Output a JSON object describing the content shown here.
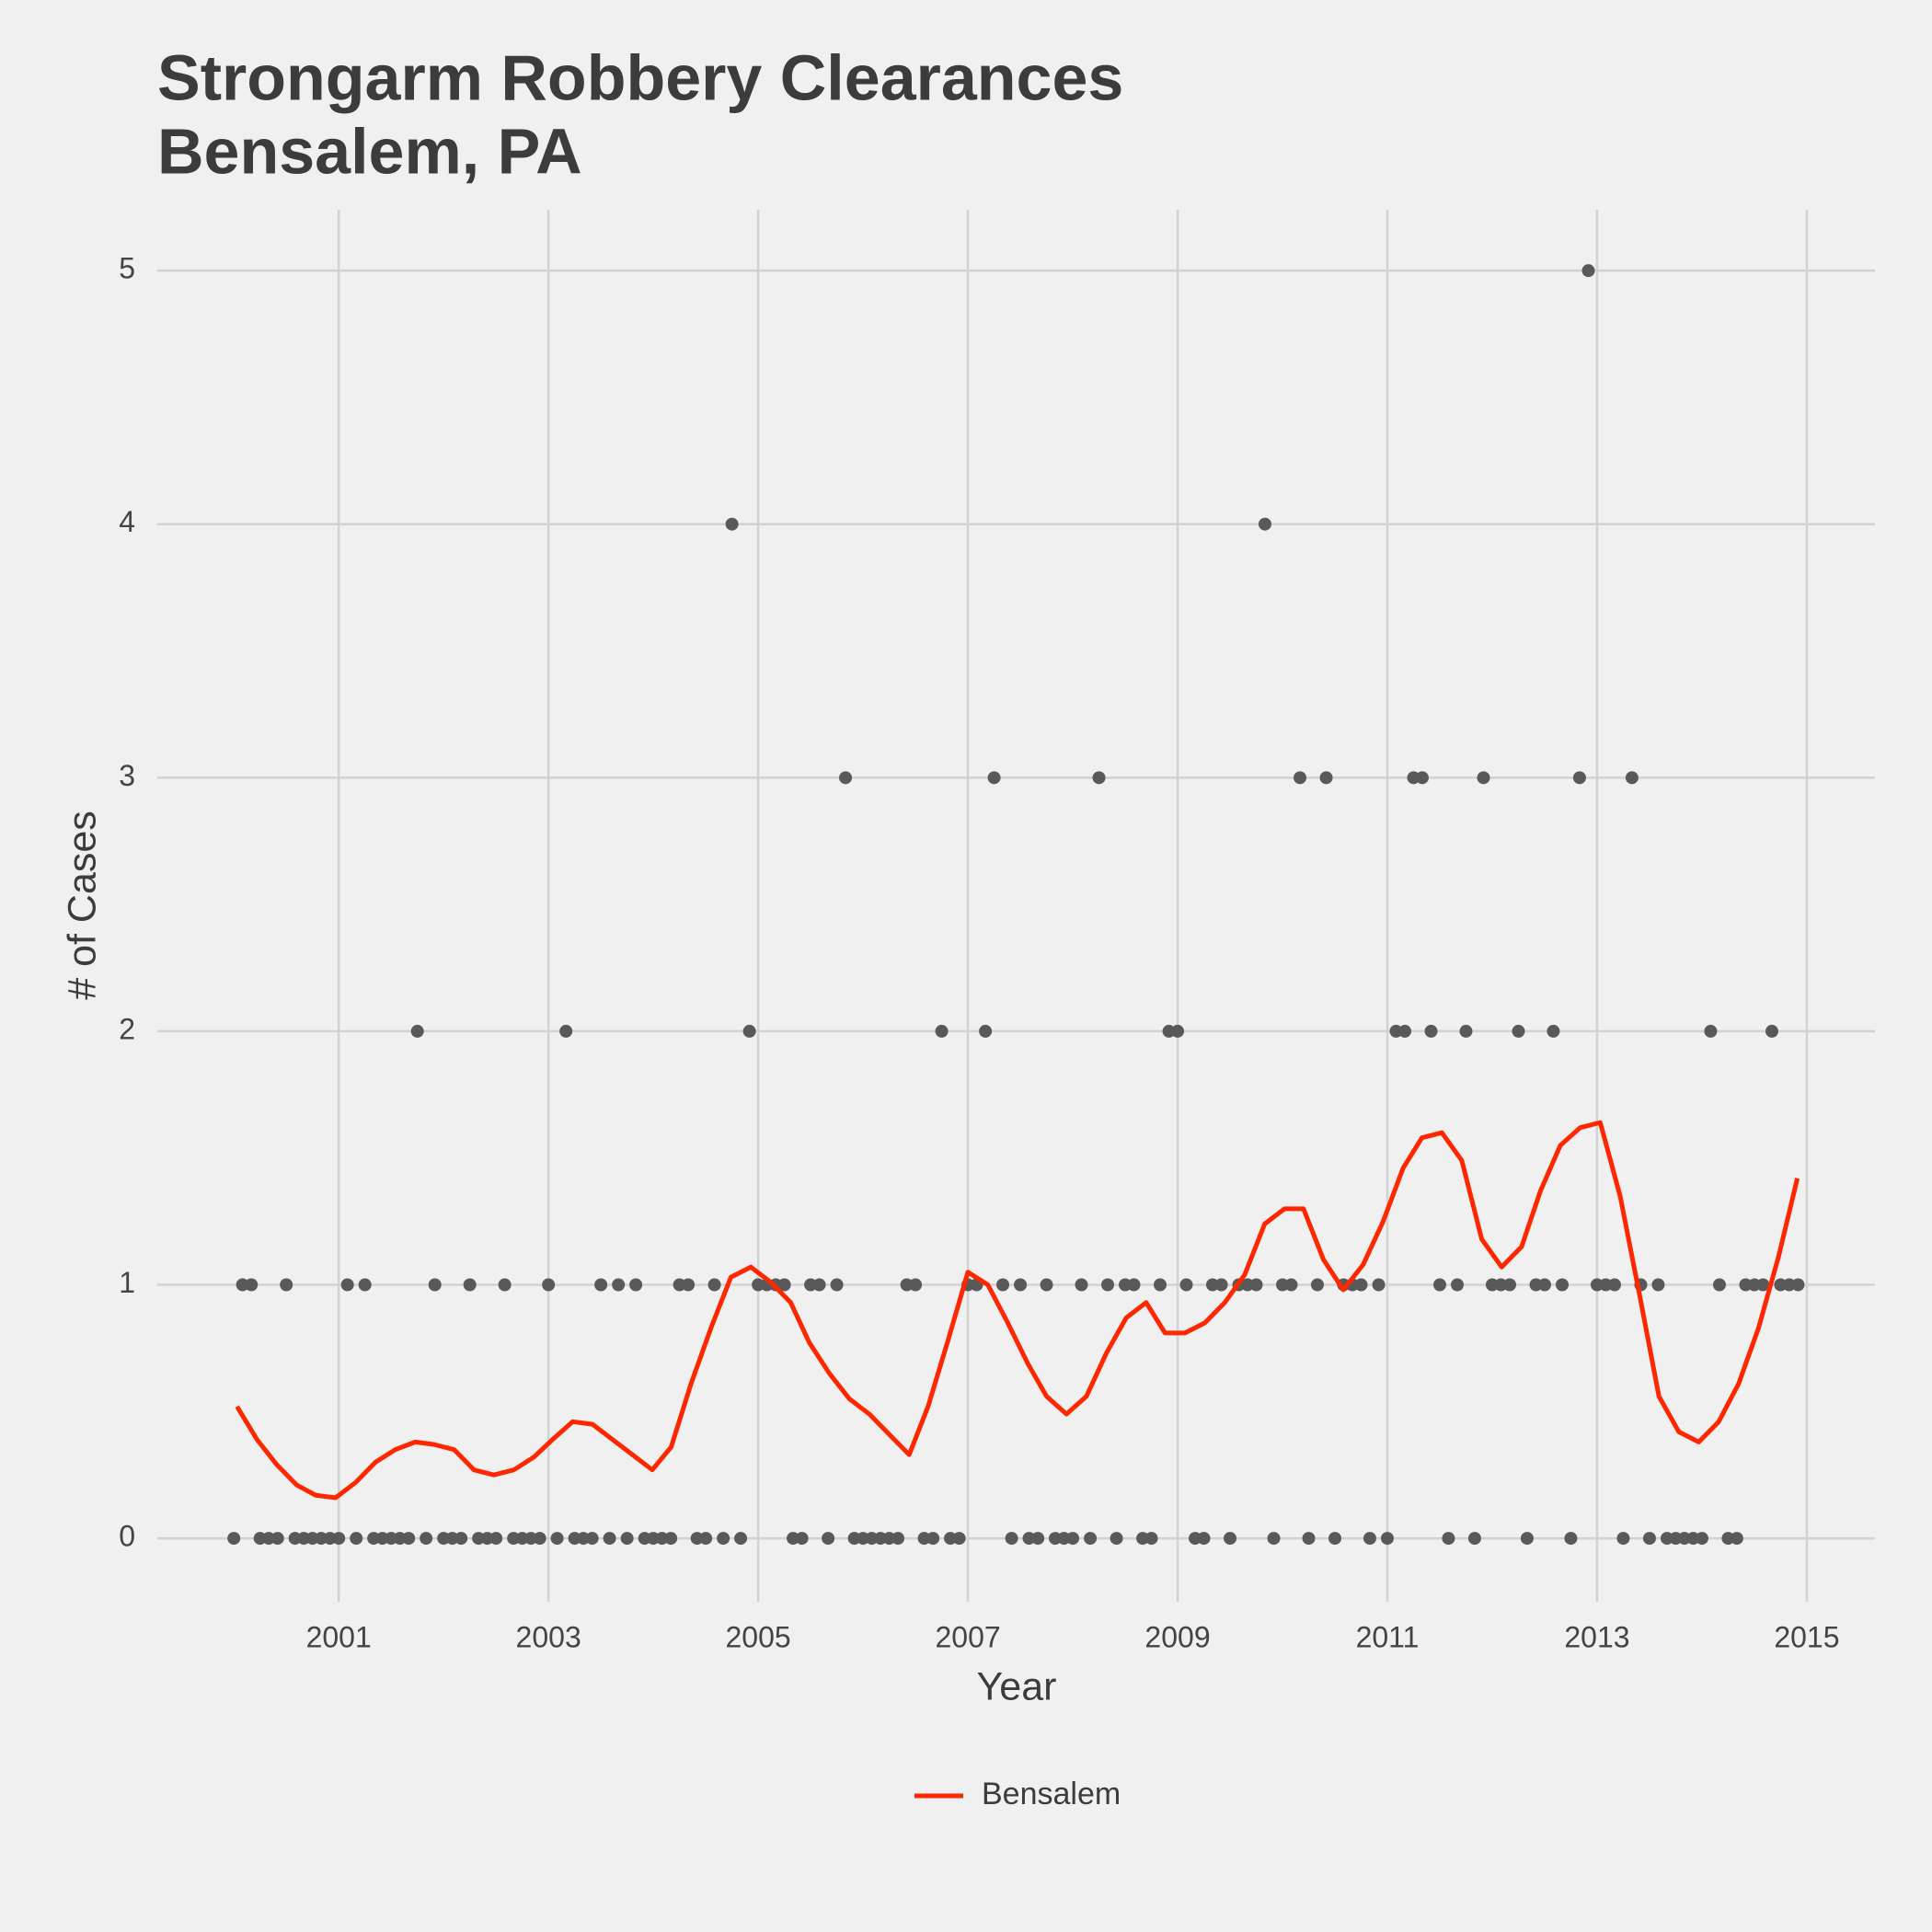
{
  "chart_data": {
    "type": "line",
    "title": "Strongarm Robbery Clearances",
    "subtitle": "Bensalem, PA",
    "x_label": "Year",
    "y_label": "# of Cases",
    "xlim": [
      1999.27,
      2015.65
    ],
    "ylim": [
      -0.25,
      5.24
    ],
    "xticks": [
      2001,
      2003,
      2005,
      2007,
      2009,
      2011,
      2013,
      2015
    ],
    "yticks": [
      0,
      1,
      2,
      3,
      4,
      5
    ],
    "grid": true,
    "legend": "bottom",
    "points": {
      "color": "#595959",
      "x": [
        2000,
        2000.083,
        2000.167,
        2000.25,
        2000.333,
        2000.417,
        2000.5,
        2000.583,
        2000.667,
        2000.75,
        2000.833,
        2000.917,
        2001,
        2001.083,
        2001.167,
        2001.25,
        2001.333,
        2001.417,
        2001.5,
        2001.583,
        2001.667,
        2001.75,
        2001.833,
        2001.917,
        2002,
        2002.083,
        2002.167,
        2002.25,
        2002.333,
        2002.417,
        2002.5,
        2002.583,
        2002.667,
        2002.75,
        2002.833,
        2002.917,
        2003,
        2003.083,
        2003.167,
        2003.25,
        2003.333,
        2003.417,
        2003.5,
        2003.583,
        2003.667,
        2003.75,
        2003.833,
        2003.917,
        2004,
        2004.083,
        2004.167,
        2004.25,
        2004.333,
        2004.417,
        2004.5,
        2004.583,
        2004.667,
        2004.75,
        2004.833,
        2004.917,
        2005,
        2005.083,
        2005.167,
        2005.25,
        2005.333,
        2005.417,
        2005.5,
        2005.583,
        2005.667,
        2005.75,
        2005.833,
        2005.917,
        2006,
        2006.083,
        2006.167,
        2006.25,
        2006.333,
        2006.417,
        2006.5,
        2006.583,
        2006.667,
        2006.75,
        2006.833,
        2006.917,
        2007,
        2007.083,
        2007.167,
        2007.25,
        2007.333,
        2007.417,
        2007.5,
        2007.583,
        2007.667,
        2007.75,
        2007.833,
        2007.917,
        2008,
        2008.083,
        2008.167,
        2008.25,
        2008.333,
        2008.417,
        2008.5,
        2008.583,
        2008.667,
        2008.75,
        2008.833,
        2008.917,
        2009,
        2009.083,
        2009.167,
        2009.25,
        2009.333,
        2009.417,
        2009.5,
        2009.583,
        2009.667,
        2009.75,
        2009.833,
        2009.917,
        2010,
        2010.083,
        2010.167,
        2010.25,
        2010.333,
        2010.417,
        2010.5,
        2010.583,
        2010.667,
        2010.75,
        2010.833,
        2010.917,
        2011,
        2011.083,
        2011.167,
        2011.25,
        2011.333,
        2011.417,
        2011.5,
        2011.583,
        2011.667,
        2011.75,
        2011.833,
        2011.917,
        2012,
        2012.083,
        2012.167,
        2012.25,
        2012.333,
        2012.417,
        2012.5,
        2012.583,
        2012.667,
        2012.75,
        2012.833,
        2012.917,
        2013,
        2013.083,
        2013.167,
        2013.25,
        2013.333,
        2013.417,
        2013.5,
        2013.583,
        2013.667,
        2013.75,
        2013.833,
        2013.917,
        2014,
        2014.083,
        2014.167,
        2014.25,
        2014.333,
        2014.417,
        2014.5,
        2014.583,
        2014.667,
        2014.75,
        2014.833,
        2014.917
      ],
      "values": [
        0,
        1,
        1,
        0,
        0,
        0,
        1,
        0,
        0,
        0,
        0,
        0,
        0,
        1,
        0,
        1,
        0,
        0,
        0,
        0,
        0,
        2,
        0,
        1,
        0,
        0,
        0,
        1,
        0,
        0,
        0,
        1,
        0,
        0,
        0,
        0,
        1,
        0,
        2,
        0,
        0,
        0,
        1,
        0,
        1,
        0,
        1,
        0,
        0,
        0,
        0,
        1,
        1,
        0,
        0,
        1,
        0,
        4,
        0,
        2,
        1,
        1,
        1,
        1,
        0,
        0,
        1,
        1,
        0,
        1,
        3,
        0,
        0,
        0,
        0,
        0,
        0,
        1,
        1,
        0,
        0,
        2,
        0,
        0,
        1,
        1,
        2,
        3,
        1,
        0,
        1,
        0,
        0,
        1,
        0,
        0,
        0,
        1,
        0,
        3,
        1,
        0,
        1,
        1,
        0,
        0,
        1,
        2,
        2,
        1,
        0,
        0,
        1,
        1,
        0,
        1,
        1,
        1,
        4,
        0,
        1,
        1,
        3,
        0,
        1,
        3,
        0,
        1,
        1,
        1,
        0,
        1,
        0,
        2,
        2,
        3,
        3,
        2,
        1,
        0,
        1,
        2,
        0,
        3,
        1,
        1,
        1,
        2,
        0,
        1,
        1,
        2,
        1,
        0,
        3,
        5,
        1,
        1,
        1,
        0,
        3,
        1,
        0,
        1,
        0,
        0,
        0,
        0,
        0,
        2,
        1,
        0,
        0,
        1,
        1,
        1,
        2,
        1,
        1,
        1
      ]
    },
    "series": [
      {
        "name": "Bensalem",
        "color": "#ff2700",
        "x": [
          2000.03,
          2000.22,
          2000.41,
          2000.6,
          2000.78,
          2000.97,
          2001.16,
          2001.35,
          2001.54,
          2001.73,
          2001.91,
          2002.1,
          2002.29,
          2002.48,
          2002.67,
          2002.86,
          2003.04,
          2003.23,
          2003.42,
          2003.61,
          2003.8,
          2003.99,
          2004.17,
          2004.36,
          2004.55,
          2004.74,
          2004.93,
          2005.12,
          2005.31,
          2005.49,
          2005.68,
          2005.87,
          2006.06,
          2006.25,
          2006.44,
          2006.62,
          2006.81,
          2007,
          2007.19,
          2007.38,
          2007.57,
          2007.75,
          2007.94,
          2008.13,
          2008.32,
          2008.51,
          2008.7,
          2008.88,
          2009.07,
          2009.26,
          2009.45,
          2009.64,
          2009.83,
          2010.02,
          2010.2,
          2010.39,
          2010.58,
          2010.77,
          2010.96,
          2011.15,
          2011.33,
          2011.52,
          2011.71,
          2011.9,
          2012.09,
          2012.28,
          2012.46,
          2012.65,
          2012.84,
          2013.03,
          2013.22,
          2013.41,
          2013.59,
          2013.78,
          2013.97,
          2014.16,
          2014.35,
          2014.54,
          2014.73,
          2014.91
        ],
        "values": [
          0.52,
          0.39,
          0.29,
          0.21,
          0.17,
          0.16,
          0.22,
          0.3,
          0.35,
          0.38,
          0.37,
          0.35,
          0.27,
          0.25,
          0.27,
          0.32,
          0.39,
          0.46,
          0.45,
          0.39,
          0.33,
          0.27,
          0.36,
          0.61,
          0.83,
          1.03,
          1.07,
          1.01,
          0.93,
          0.77,
          0.65,
          0.55,
          0.49,
          0.41,
          0.33,
          0.52,
          0.78,
          1.05,
          1,
          0.85,
          0.69,
          0.56,
          0.49,
          0.56,
          0.73,
          0.87,
          0.93,
          0.81,
          0.81,
          0.85,
          0.93,
          1.04,
          1.24,
          1.3,
          1.3,
          1.1,
          0.98,
          1.08,
          1.25,
          1.46,
          1.58,
          1.6,
          1.49,
          1.18,
          1.07,
          1.15,
          1.37,
          1.55,
          1.62,
          1.64,
          1.35,
          0.95,
          0.56,
          0.42,
          0.38,
          0.46,
          0.61,
          0.83,
          1.11,
          1.42
        ]
      }
    ]
  }
}
